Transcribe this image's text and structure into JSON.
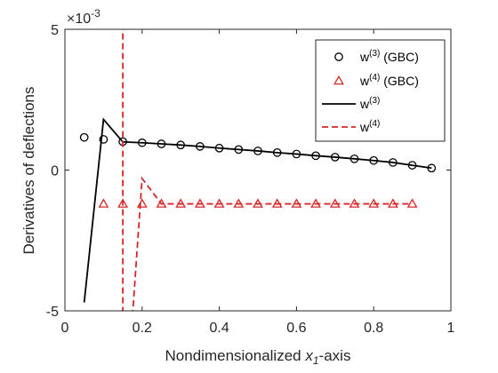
{
  "chart_data": {
    "type": "line",
    "xlabel": "Nondimensionalized x1-axis",
    "xlabel_parts": {
      "before": "Nondimensionalized ",
      "var": "x",
      "sub": "1",
      "after": "-axis"
    },
    "ylabel": "Derivatives of deflections",
    "xlim": [
      0,
      1
    ],
    "ylim": [
      -0.005,
      0.005
    ],
    "xticks": [
      "0",
      "0.2",
      "0.4",
      "0.6",
      "0.8",
      "1"
    ],
    "yticks": [
      "-5",
      "0",
      "5"
    ],
    "y_exponent_base": "×10",
    "y_exponent": "-3",
    "legend_position": "top-right",
    "colors": {
      "black": "#000000",
      "red": "#d62728"
    },
    "series": [
      {
        "name": "w(3) (GBC)",
        "legend": {
          "base": "w",
          "sup": "(3)",
          "suffix": " (GBC)"
        },
        "style": "circle-marker",
        "color": "#000000",
        "x": [
          0.05,
          0.1,
          0.15,
          0.2,
          0.25,
          0.3,
          0.35,
          0.4,
          0.45,
          0.5,
          0.55,
          0.6,
          0.65,
          0.7,
          0.75,
          0.8,
          0.85,
          0.9,
          0.95
        ],
        "y": [
          0.00116,
          0.00109,
          0.00101,
          0.00097,
          0.00093,
          0.00089,
          0.00084,
          0.00078,
          0.00073,
          0.00068,
          0.00062,
          0.00057,
          0.00051,
          0.00046,
          0.0004,
          0.00034,
          0.00027,
          0.00017,
          7e-05
        ]
      },
      {
        "name": "w(4) (GBC)",
        "legend": {
          "base": "w",
          "sup": "(4)",
          "suffix": " (GBC)"
        },
        "style": "triangle-marker",
        "color": "#d62728",
        "x": [
          0.1,
          0.15,
          0.2,
          0.25,
          0.3,
          0.35,
          0.4,
          0.45,
          0.5,
          0.55,
          0.6,
          0.65,
          0.7,
          0.75,
          0.8,
          0.85,
          0.9
        ],
        "y": [
          -0.0012,
          -0.0012,
          -0.0012,
          -0.0012,
          -0.0012,
          -0.0012,
          -0.0012,
          -0.0012,
          -0.0012,
          -0.0012,
          -0.0012,
          -0.0012,
          -0.0012,
          -0.0012,
          -0.0012,
          -0.0012,
          -0.0012
        ]
      },
      {
        "name": "w(3)",
        "legend": {
          "base": "w",
          "sup": "(3)",
          "suffix": ""
        },
        "style": "solid",
        "color": "#000000",
        "x": [
          0.05,
          0.1,
          0.15,
          0.2,
          0.25,
          0.3,
          0.35,
          0.4,
          0.45,
          0.5,
          0.55,
          0.6,
          0.65,
          0.7,
          0.75,
          0.8,
          0.85,
          0.9,
          0.95
        ],
        "y": [
          -0.0047,
          0.0018,
          0.001,
          0.00097,
          0.00093,
          0.00089,
          0.00084,
          0.00078,
          0.00073,
          0.00068,
          0.00062,
          0.00057,
          0.00051,
          0.00046,
          0.0004,
          0.00034,
          0.00027,
          0.00017,
          7e-05
        ]
      },
      {
        "name": "w(4)",
        "legend": {
          "base": "w",
          "sup": "(4)",
          "suffix": ""
        },
        "style": "dashed",
        "color": "#d62728",
        "x": [
          0.15,
          0.15,
          0.175,
          0.2,
          0.25,
          0.3,
          0.35,
          0.4,
          0.45,
          0.5,
          0.55,
          0.6,
          0.65,
          0.7,
          0.75,
          0.8,
          0.85,
          0.9
        ],
        "y": [
          0.0052,
          -0.0052,
          -0.0052,
          -0.0003,
          -0.0012,
          -0.0012,
          -0.0012,
          -0.0012,
          -0.0012,
          -0.0012,
          -0.0012,
          -0.0012,
          -0.0012,
          -0.0012,
          -0.0012,
          -0.0012,
          -0.0012,
          -0.0012
        ]
      }
    ]
  }
}
